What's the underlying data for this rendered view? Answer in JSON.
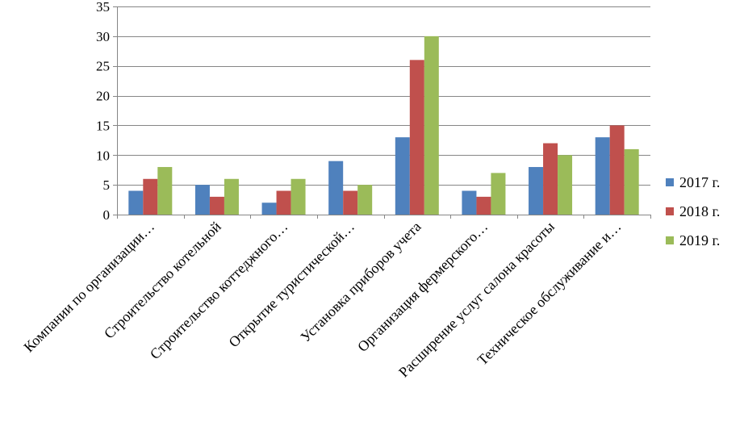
{
  "chart_data": {
    "type": "bar",
    "categories": [
      "Компании по организации…",
      "Строительство котельной",
      "Строительство коттеджного…",
      "Открытие туристической…",
      "Установка приборов учета",
      "Организация фермерского…",
      "Расширение услуг салона красоты",
      "Техническое обслуживание и…"
    ],
    "series": [
      {
        "name": "2017 г.",
        "color": "#4F81BD",
        "values": [
          4,
          5,
          2,
          9,
          13,
          4,
          8,
          13
        ]
      },
      {
        "name": "2018 г.",
        "color": "#C0504D",
        "values": [
          6,
          3,
          4,
          4,
          26,
          3,
          12,
          15
        ]
      },
      {
        "name": "2019 г.",
        "color": "#9BBB59",
        "values": [
          8,
          6,
          6,
          5,
          30,
          7,
          10,
          11
        ]
      }
    ],
    "ylim": [
      0,
      35
    ],
    "yticks": [
      0,
      5,
      10,
      15,
      20,
      25,
      30,
      35
    ],
    "grid": true,
    "legend": "right"
  }
}
